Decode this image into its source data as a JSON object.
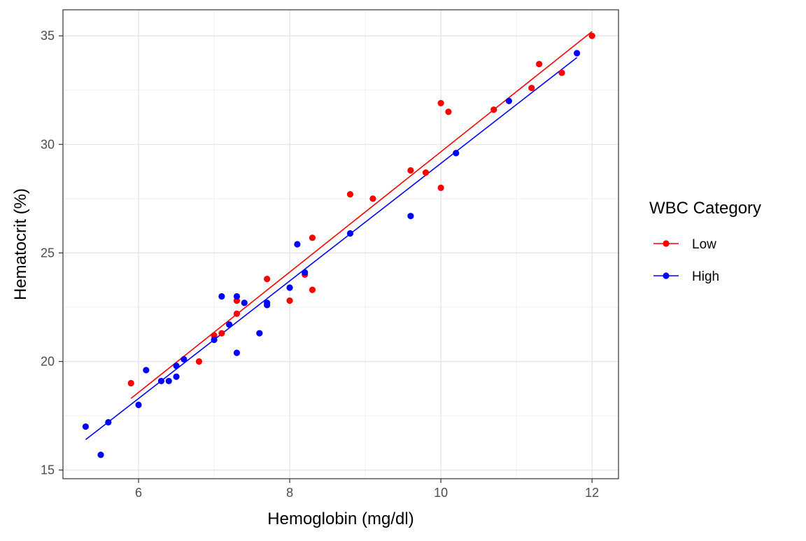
{
  "chart_data": {
    "type": "scatter",
    "title": "",
    "xlabel": "Hemoglobin (mg/dl)",
    "ylabel": "Hematocrit (%)",
    "xlim": [
      5.0,
      12.35
    ],
    "ylim": [
      14.6,
      36.2
    ],
    "x_ticks": [
      6,
      8,
      10,
      12
    ],
    "y_ticks": [
      15,
      20,
      25,
      30,
      35
    ],
    "x_minor": [
      5,
      7,
      9,
      11
    ],
    "y_minor": [
      17.5,
      22.5,
      27.5,
      32.5
    ],
    "grid": true,
    "legend": {
      "title": "WBC Category",
      "position": "right",
      "entries": [
        "Low",
        "High"
      ]
    },
    "series": [
      {
        "name": "Low",
        "color": "#ff0000",
        "points": [
          [
            5.9,
            19.0
          ],
          [
            6.8,
            20.0
          ],
          [
            7.0,
            21.2
          ],
          [
            7.1,
            21.3
          ],
          [
            7.3,
            22.2
          ],
          [
            7.3,
            22.8
          ],
          [
            7.7,
            23.8
          ],
          [
            8.0,
            22.8
          ],
          [
            8.2,
            24.0
          ],
          [
            8.3,
            23.3
          ],
          [
            8.3,
            25.7
          ],
          [
            8.8,
            27.7
          ],
          [
            9.1,
            27.5
          ],
          [
            9.6,
            28.8
          ],
          [
            9.8,
            28.7
          ],
          [
            10.0,
            28.0
          ],
          [
            10.0,
            31.9
          ],
          [
            10.1,
            31.5
          ],
          [
            10.7,
            31.6
          ],
          [
            11.2,
            32.6
          ],
          [
            11.3,
            33.7
          ],
          [
            11.6,
            33.3
          ],
          [
            12.0,
            35.0
          ]
        ],
        "fit": [
          [
            5.9,
            18.3
          ],
          [
            12.0,
            35.2
          ]
        ]
      },
      {
        "name": "High",
        "color": "#0000ff",
        "points": [
          [
            5.3,
            17.0
          ],
          [
            5.5,
            15.7
          ],
          [
            5.6,
            17.2
          ],
          [
            6.0,
            18.0
          ],
          [
            6.1,
            19.6
          ],
          [
            6.3,
            19.1
          ],
          [
            6.4,
            19.1
          ],
          [
            6.5,
            19.3
          ],
          [
            6.5,
            19.8
          ],
          [
            6.6,
            20.1
          ],
          [
            7.0,
            21.0
          ],
          [
            7.1,
            23.0
          ],
          [
            7.2,
            21.7
          ],
          [
            7.3,
            23.0
          ],
          [
            7.3,
            20.4
          ],
          [
            7.4,
            22.7
          ],
          [
            7.6,
            21.3
          ],
          [
            7.7,
            22.6
          ],
          [
            7.7,
            22.7
          ],
          [
            8.0,
            23.4
          ],
          [
            8.1,
            25.4
          ],
          [
            8.2,
            24.1
          ],
          [
            8.8,
            25.9
          ],
          [
            9.6,
            26.7
          ],
          [
            10.2,
            29.6
          ],
          [
            10.9,
            32.0
          ],
          [
            11.8,
            34.2
          ]
        ],
        "fit": [
          [
            5.3,
            16.4
          ],
          [
            11.8,
            34.0
          ]
        ]
      }
    ]
  }
}
